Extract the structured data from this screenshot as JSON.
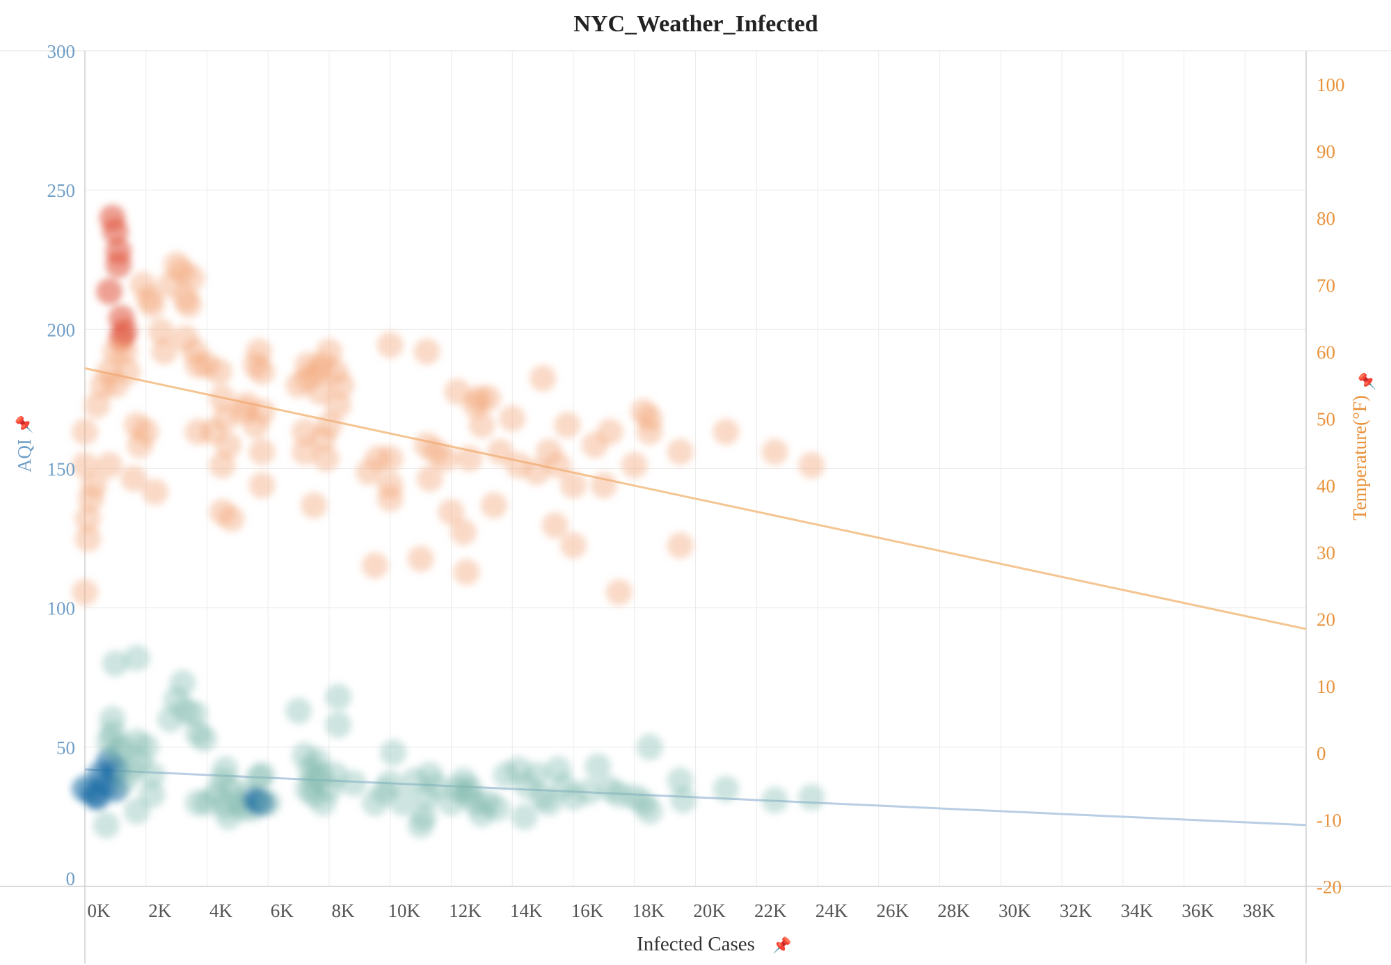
{
  "chart_data": {
    "type": "scatter",
    "title": "NYC_Weather_Infected",
    "xlabel": "Infected Cases",
    "ylabel_left": "AQI",
    "ylabel_right": "Temperature(°F)",
    "pin_icon": "pin-icon",
    "x_range": [
      0,
      40000
    ],
    "y_left_range": [
      0,
      300
    ],
    "y_right_range": [
      -20,
      105
    ],
    "x_ticks": [
      0,
      2000,
      4000,
      6000,
      8000,
      10000,
      12000,
      14000,
      16000,
      18000,
      20000,
      22000,
      24000,
      26000,
      28000,
      30000,
      32000,
      34000,
      36000,
      38000
    ],
    "x_tick_labels": [
      "0K",
      "2K",
      "4K",
      "6K",
      "8K",
      "10K",
      "12K",
      "14K",
      "16K",
      "18K",
      "20K",
      "22K",
      "24K",
      "26K",
      "28K",
      "30K",
      "32K",
      "34K",
      "36K",
      "38K"
    ],
    "y_left_ticks": [
      0,
      50,
      100,
      150,
      200,
      250,
      300
    ],
    "y_left_tick_labels": [
      "0",
      "50",
      "100",
      "150",
      "200",
      "250",
      "300"
    ],
    "y_right_ticks": [
      -20,
      -10,
      0,
      10,
      20,
      30,
      40,
      50,
      60,
      70,
      80,
      90,
      100
    ],
    "y_right_tick_labels": [
      "-20",
      "-10",
      "0",
      "10",
      "20",
      "30",
      "40",
      "50",
      "60",
      "70",
      "80",
      "90",
      "100"
    ],
    "grid": true,
    "colors": {
      "aqi": "#7fb8ae",
      "aqi_dense": "#1f6fa6",
      "temperature": "#f3a77a",
      "temperature_dense": "#e0533a",
      "aqi_trend": "#b9cde3",
      "temp_trend": "#f4c591"
    },
    "series": [
      {
        "name": "AQI",
        "axis": "left",
        "trend": [
          [
            0,
            42
          ],
          [
            40000,
            22
          ]
        ],
        "points": [
          [
            0,
            35
          ],
          [
            300,
            33
          ],
          [
            500,
            40
          ],
          [
            700,
            37
          ],
          [
            800,
            45
          ],
          [
            800,
            52
          ],
          [
            900,
            55
          ],
          [
            900,
            60
          ],
          [
            1000,
            42
          ],
          [
            1000,
            35
          ],
          [
            1100,
            48
          ],
          [
            1200,
            50
          ],
          [
            1300,
            38
          ],
          [
            1500,
            42
          ],
          [
            1800,
            45
          ],
          [
            2000,
            50
          ],
          [
            2200,
            40
          ],
          [
            700,
            22
          ],
          [
            1700,
            27
          ],
          [
            2200,
            33
          ],
          [
            400,
            32
          ],
          [
            1000,
            80
          ],
          [
            1700,
            82
          ],
          [
            1700,
            52
          ],
          [
            2800,
            60
          ],
          [
            3000,
            67
          ],
          [
            3200,
            73
          ],
          [
            3300,
            63
          ],
          [
            3600,
            62
          ],
          [
            3700,
            55
          ],
          [
            3900,
            53
          ],
          [
            3700,
            30
          ],
          [
            4000,
            30
          ],
          [
            4300,
            33
          ],
          [
            4500,
            38
          ],
          [
            4600,
            29
          ],
          [
            4700,
            25
          ],
          [
            4800,
            35
          ],
          [
            5000,
            30
          ],
          [
            5200,
            28
          ],
          [
            5300,
            33
          ],
          [
            5500,
            28
          ],
          [
            5600,
            31
          ],
          [
            5700,
            39
          ],
          [
            5800,
            30
          ],
          [
            6000,
            30
          ],
          [
            5800,
            40
          ],
          [
            4600,
            42
          ],
          [
            7000,
            63
          ],
          [
            7200,
            47
          ],
          [
            7400,
            42
          ],
          [
            7500,
            38
          ],
          [
            7600,
            45
          ],
          [
            7700,
            40
          ],
          [
            7300,
            35
          ],
          [
            7500,
            33
          ],
          [
            8000,
            35
          ],
          [
            8200,
            40
          ],
          [
            8300,
            58
          ],
          [
            8300,
            68
          ],
          [
            7800,
            30
          ],
          [
            8800,
            37
          ],
          [
            9500,
            30
          ],
          [
            9800,
            34
          ],
          [
            10000,
            37
          ],
          [
            10100,
            48
          ],
          [
            10400,
            30
          ],
          [
            10800,
            38
          ],
          [
            11000,
            22
          ],
          [
            11100,
            25
          ],
          [
            11200,
            32
          ],
          [
            11300,
            40
          ],
          [
            11500,
            36
          ],
          [
            12000,
            30
          ],
          [
            12200,
            35
          ],
          [
            12400,
            38
          ],
          [
            12500,
            33
          ],
          [
            12600,
            35
          ],
          [
            12800,
            30
          ],
          [
            13000,
            26
          ],
          [
            13200,
            30
          ],
          [
            13500,
            28
          ],
          [
            13800,
            40
          ],
          [
            14200,
            42
          ],
          [
            14500,
            36
          ],
          [
            14800,
            40
          ],
          [
            14400,
            25
          ],
          [
            15000,
            32
          ],
          [
            15200,
            30
          ],
          [
            15500,
            42
          ],
          [
            15700,
            36
          ],
          [
            16000,
            32
          ],
          [
            16500,
            34
          ],
          [
            16800,
            43
          ],
          [
            17200,
            35
          ],
          [
            17500,
            33
          ],
          [
            18000,
            32
          ],
          [
            18300,
            30
          ],
          [
            18500,
            27
          ],
          [
            18500,
            50
          ],
          [
            19500,
            38
          ],
          [
            19600,
            31
          ],
          [
            21000,
            35
          ],
          [
            22600,
            31
          ],
          [
            23800,
            32
          ]
        ]
      },
      {
        "name": "Temperature(°F)",
        "axis": "right",
        "trend": [
          [
            0,
            57.5
          ],
          [
            40000,
            18.5
          ]
        ],
        "points": [
          [
            0,
            24
          ],
          [
            100,
            32
          ],
          [
            100,
            35
          ],
          [
            200,
            38
          ],
          [
            0,
            43
          ],
          [
            300,
            40
          ],
          [
            0,
            48
          ],
          [
            400,
            52
          ],
          [
            600,
            55
          ],
          [
            800,
            43
          ],
          [
            800,
            57
          ],
          [
            900,
            80
          ],
          [
            1000,
            78
          ],
          [
            1100,
            73
          ],
          [
            800,
            69
          ],
          [
            1100,
            75
          ],
          [
            1200,
            65
          ],
          [
            1200,
            62
          ],
          [
            1000,
            60
          ],
          [
            1000,
            55
          ],
          [
            1300,
            60
          ],
          [
            1300,
            63
          ],
          [
            1400,
            57
          ],
          [
            1600,
            41
          ],
          [
            1700,
            49
          ],
          [
            1800,
            46
          ],
          [
            2000,
            48
          ],
          [
            1900,
            70
          ],
          [
            2100,
            68
          ],
          [
            2200,
            67
          ],
          [
            2300,
            39
          ],
          [
            2500,
            63
          ],
          [
            2600,
            60
          ],
          [
            2800,
            70
          ],
          [
            3000,
            73
          ],
          [
            3200,
            72
          ],
          [
            3300,
            68
          ],
          [
            3500,
            71
          ],
          [
            3300,
            62
          ],
          [
            3400,
            67
          ],
          [
            3600,
            60
          ],
          [
            3700,
            58
          ],
          [
            4000,
            58
          ],
          [
            3700,
            48
          ],
          [
            4200,
            48
          ],
          [
            4400,
            57
          ],
          [
            4500,
            53
          ],
          [
            4500,
            43
          ],
          [
            4600,
            50
          ],
          [
            4700,
            46
          ],
          [
            4800,
            35
          ],
          [
            4500,
            36
          ],
          [
            5200,
            51
          ],
          [
            5300,
            52
          ],
          [
            5600,
            58
          ],
          [
            5700,
            60
          ],
          [
            5800,
            57
          ],
          [
            5800,
            51
          ],
          [
            5600,
            49
          ],
          [
            5800,
            45
          ],
          [
            5800,
            40
          ],
          [
            7000,
            55
          ],
          [
            7200,
            48
          ],
          [
            7200,
            45
          ],
          [
            7300,
            58
          ],
          [
            7300,
            56
          ],
          [
            7600,
            57
          ],
          [
            7700,
            54
          ],
          [
            7800,
            58
          ],
          [
            8000,
            49
          ],
          [
            7800,
            47
          ],
          [
            7900,
            44
          ],
          [
            8000,
            60
          ],
          [
            8200,
            57
          ],
          [
            8400,
            55
          ],
          [
            8300,
            52
          ],
          [
            7500,
            37
          ],
          [
            9300,
            42
          ],
          [
            9600,
            44
          ],
          [
            10000,
            44
          ],
          [
            10000,
            40
          ],
          [
            10000,
            38
          ],
          [
            9500,
            28
          ],
          [
            10000,
            61
          ],
          [
            11000,
            29
          ],
          [
            11200,
            60
          ],
          [
            11200,
            46
          ],
          [
            11500,
            45
          ],
          [
            11300,
            41
          ],
          [
            11800,
            44
          ],
          [
            12000,
            36
          ],
          [
            12200,
            54
          ],
          [
            12400,
            33
          ],
          [
            12500,
            27
          ],
          [
            12600,
            44
          ],
          [
            12800,
            52
          ],
          [
            12900,
            53
          ],
          [
            13000,
            49
          ],
          [
            13200,
            53
          ],
          [
            13400,
            37
          ],
          [
            13600,
            45
          ],
          [
            14000,
            50
          ],
          [
            14200,
            43
          ],
          [
            14800,
            42
          ],
          [
            15000,
            56
          ],
          [
            15200,
            45
          ],
          [
            15500,
            43
          ],
          [
            15400,
            34
          ],
          [
            16000,
            31
          ],
          [
            16000,
            40
          ],
          [
            15800,
            49
          ],
          [
            16700,
            46
          ],
          [
            17000,
            40
          ],
          [
            17200,
            48
          ],
          [
            17500,
            24
          ],
          [
            18000,
            43
          ],
          [
            18300,
            51
          ],
          [
            18500,
            50
          ],
          [
            18500,
            48
          ],
          [
            19500,
            31
          ],
          [
            19500,
            45
          ],
          [
            21000,
            48
          ],
          [
            22600,
            45
          ],
          [
            23800,
            43
          ]
        ]
      }
    ]
  }
}
